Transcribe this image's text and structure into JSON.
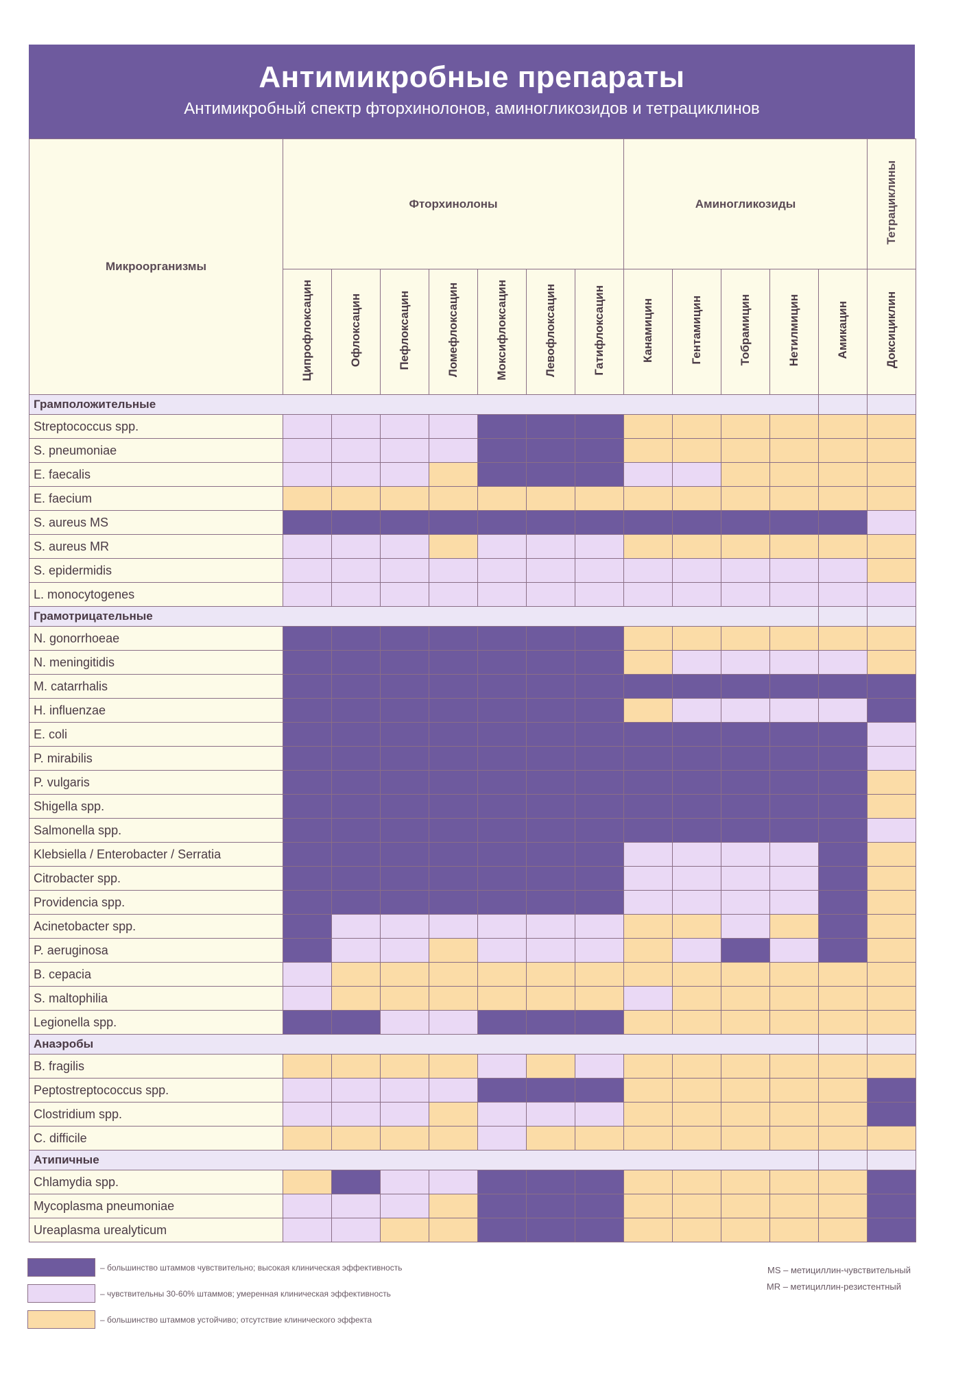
{
  "title": "Антимикробные препараты",
  "subtitle": "Антимикробный спектр фторхинолонов, аминогликозидов и тетрациклинов",
  "header": {
    "organisms": "Микроорганизмы",
    "classes": [
      {
        "name": "Фторхинолоны",
        "span": 7
      },
      {
        "name": "Аминогликозиды",
        "span": 5
      },
      {
        "name": "Тетрациклины",
        "span": 1
      }
    ],
    "drugs": [
      "Ципрофлоксацин",
      "Офлоксацин",
      "Пефлоксацин",
      "Ломефлоксацин",
      "Моксифлоксацин",
      "Левофлоксацин",
      "Гатифлоксацин",
      "Канамицин",
      "Гентамицин",
      "Тобрамицин",
      "Нетилмицин",
      "Амикацин",
      "Доксициклин"
    ]
  },
  "groups": [
    {
      "name": "Грамположительные",
      "rows": [
        {
          "organism": "Streptococcus spp.",
          "cells": "mmmmhhhllllll"
        },
        {
          "organism": "S. pneumoniae",
          "cells": "mmmmhhhllllll"
        },
        {
          "organism": "E. faecalis",
          "cells": "mmmlhhhmmllll"
        },
        {
          "organism": "E. faecium",
          "cells": "lllllllllllll"
        },
        {
          "organism": "S. aureus MS",
          "cells": "hhhhhhhhhhhhm"
        },
        {
          "organism": "S. aureus MR",
          "cells": "mmmlmmmllllll"
        },
        {
          "organism": "S. epidermidis",
          "cells": "mmmmmmmmmmmml"
        },
        {
          "organism": "L. monocytogenes",
          "cells": "mmmmmmmmmmmmm"
        }
      ]
    },
    {
      "name": "Грамотрицательные",
      "rows": [
        {
          "organism": "N. gonorrhoeae",
          "cells": "hhhhhhhllllll"
        },
        {
          "organism": "N. meningitidis",
          "cells": "hhhhhhhlmmmml"
        },
        {
          "organism": "M. catarrhalis",
          "cells": "hhhhhhhhhhhhh"
        },
        {
          "organism": "H. influenzae",
          "cells": "hhhhhhhlmmmmh"
        },
        {
          "organism": "E. coli",
          "cells": "hhhhhhhhhhhhm"
        },
        {
          "organism": "P. mirabilis",
          "cells": "hhhhhhhhhhhhm"
        },
        {
          "organism": "P. vulgaris",
          "cells": "hhhhhhhhhhhhl"
        },
        {
          "organism": "Shigella spp.",
          "cells": "hhhhhhhhhhhhl"
        },
        {
          "organism": "Salmonella spp.",
          "cells": "hhhhhhhhhhhhm"
        },
        {
          "organism": "Klebsiella / Enterobacter / Serratia",
          "cells": "hhhhhhhmmmmhl"
        },
        {
          "organism": "Citrobacter spp.",
          "cells": "hhhhhhhmmmmhl"
        },
        {
          "organism": "Providencia spp.",
          "cells": "hhhhhhhmmmmhl"
        },
        {
          "organism": "Acinetobacter spp.",
          "cells": "hmmmmmmllmlhl"
        },
        {
          "organism": "P. aeruginosa",
          "cells": "hmmlmmmlmhmhl"
        },
        {
          "organism": "B. cepacia",
          "cells": "mllllllllllll"
        },
        {
          "organism": "S. maltophilia",
          "cells": "mllllllmlllll"
        },
        {
          "organism": "Legionella spp.",
          "cells": "hhmmhhhllllll"
        }
      ]
    },
    {
      "name": "Анаэробы",
      "rows": [
        {
          "organism": "B. fragilis",
          "cells": "llllmlmllllll"
        },
        {
          "organism": "Peptostreptococcus spp.",
          "cells": "mmmmhhhlllllh"
        },
        {
          "organism": "Clostridium spp.",
          "cells": "mmmlmmmlllllh"
        },
        {
          "organism": "C. difficile",
          "cells": "llllmllllllll"
        }
      ]
    },
    {
      "name": "Атипичные",
      "rows": [
        {
          "organism": "Chlamydia spp.",
          "cells": "lhmmhhhlllllh"
        },
        {
          "organism": "Mycoplasma pneumoniae",
          "cells": "mmmlhhhlllllh"
        },
        {
          "organism": "Ureaplasma urealyticum",
          "cells": "mmllhhhlllllh"
        }
      ]
    }
  ],
  "legend": [
    {
      "level": "h",
      "color": "#6e5a9e",
      "text": "– большинство штаммов чувствительно; высокая клиническая эффективность"
    },
    {
      "level": "m",
      "color": "#ead9f5",
      "text": "– чувствительны 30-60% штаммов; умеренная клиническая эффективность"
    },
    {
      "level": "l",
      "color": "#fbdca7",
      "text": "– большинство штаммов устойчиво; отсутствие клинического эффекта"
    }
  ],
  "abbreviations": [
    "MS – метициллин-чувствительный",
    "MR – метициллин-резистентный"
  ],
  "colors": {
    "accent": "#6e5a9e",
    "moderate": "#ead9f5",
    "resistant": "#fbdca7",
    "background": "#fdfbe8"
  }
}
